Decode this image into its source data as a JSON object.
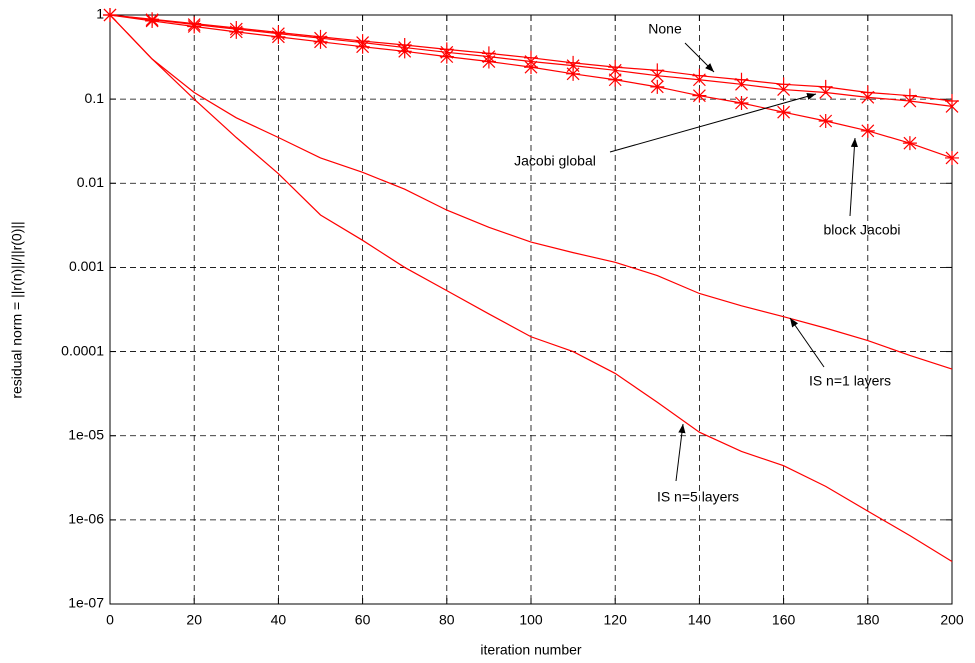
{
  "chart_data": {
    "type": "line",
    "xlabel": "iteration number",
    "ylabel": "residual norm = ||r(n)||/||r(0)||",
    "x": [
      0,
      10,
      20,
      30,
      40,
      50,
      60,
      70,
      80,
      90,
      100,
      110,
      120,
      130,
      140,
      150,
      160,
      170,
      180,
      190,
      200
    ],
    "series": [
      {
        "name": "None",
        "color": "#ff0000",
        "marker": "+",
        "values": [
          1,
          0.89,
          0.79,
          0.7,
          0.62,
          0.55,
          0.49,
          0.44,
          0.39,
          0.35,
          0.31,
          0.27,
          0.24,
          0.22,
          0.19,
          0.17,
          0.15,
          0.14,
          0.12,
          0.11,
          0.095
        ]
      },
      {
        "name": "Jacobi global",
        "color": "#ff0000",
        "marker": "x",
        "values": [
          1,
          0.88,
          0.77,
          0.68,
          0.6,
          0.53,
          0.47,
          0.41,
          0.36,
          0.32,
          0.28,
          0.25,
          0.22,
          0.19,
          0.17,
          0.15,
          0.13,
          0.12,
          0.105,
          0.095,
          0.082
        ]
      },
      {
        "name": "block Jacobi",
        "color": "#ff0000",
        "marker": "*",
        "values": [
          1,
          0.85,
          0.73,
          0.63,
          0.55,
          0.48,
          0.42,
          0.37,
          0.32,
          0.28,
          0.24,
          0.2,
          0.17,
          0.14,
          0.11,
          0.09,
          0.07,
          0.055,
          0.042,
          0.03,
          0.02
        ]
      },
      {
        "name": "IS n=1 layers",
        "color": "#ff0000",
        "values": [
          1,
          0.3,
          0.12,
          0.06,
          0.035,
          0.02,
          0.0135,
          0.0085,
          0.0048,
          0.003,
          0.002,
          0.0015,
          0.00115,
          0.0008,
          0.00049,
          0.00035,
          0.00026,
          0.00019,
          0.000135,
          9e-05,
          6.2e-05
        ]
      },
      {
        "name": "IS n=5 layers",
        "color": "#ff0000",
        "values": [
          1,
          0.3,
          0.1,
          0.035,
          0.013,
          0.0042,
          0.0021,
          0.001,
          0.00053,
          0.00028,
          0.00015,
          0.0001,
          5.5e-05,
          2.5e-05,
          1.1e-05,
          6.5e-06,
          4.4e-06,
          2.5e-06,
          1.27e-06,
          6.5e-07,
          3.2e-07
        ]
      }
    ],
    "xlim": [
      0,
      200
    ],
    "xticks": [
      0,
      20,
      40,
      60,
      80,
      100,
      120,
      140,
      160,
      180,
      200
    ],
    "ylim": [
      1e-07,
      1
    ],
    "yticks": [
      1,
      0.1,
      0.01,
      0.001,
      0.0001,
      {
        "value": 1e-05,
        "label": "1e-05"
      },
      {
        "value": 1e-06,
        "label": "1e-06"
      },
      {
        "value": 1e-07,
        "label": "1e-07"
      }
    ],
    "ylog": true,
    "grid": true
  }
}
